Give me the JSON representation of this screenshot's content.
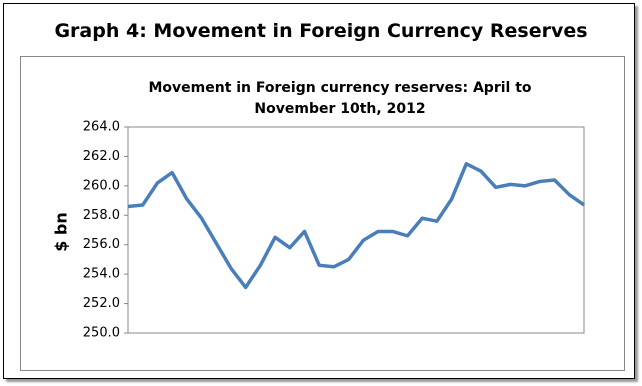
{
  "chart_data": {
    "type": "line",
    "page_title": "Graph 4: Movement in Foreign Currency Reserves",
    "title": "Movement in Foreign currency reserves: April to November 10th, 2012",
    "y_label": "$ bn",
    "series": [
      {
        "color": "#4a7ebb",
        "values": [
          258.6,
          258.7,
          260.2,
          260.9,
          259.1,
          257.8,
          256.1,
          254.4,
          253.1,
          254.6,
          256.5,
          255.8,
          256.9,
          254.6,
          254.5,
          255.0,
          256.3,
          256.9,
          256.9,
          256.6,
          257.8,
          257.6,
          259.1,
          261.5,
          261.0,
          259.9,
          260.1,
          260.0,
          260.3,
          260.4,
          259.4,
          258.7
        ]
      }
    ],
    "ylim": [
      250,
      264
    ],
    "yticks": [
      {
        "value": 250,
        "label": "250.0"
      },
      {
        "value": 252,
        "label": "252.0"
      },
      {
        "value": 254,
        "label": "254.0"
      },
      {
        "value": 256,
        "label": "256.0"
      },
      {
        "value": 258,
        "label": "258.0"
      },
      {
        "value": 260,
        "label": "260.0"
      },
      {
        "value": 262,
        "label": "262.0"
      },
      {
        "value": 264,
        "label": "264.0"
      }
    ],
    "grid": false
  }
}
